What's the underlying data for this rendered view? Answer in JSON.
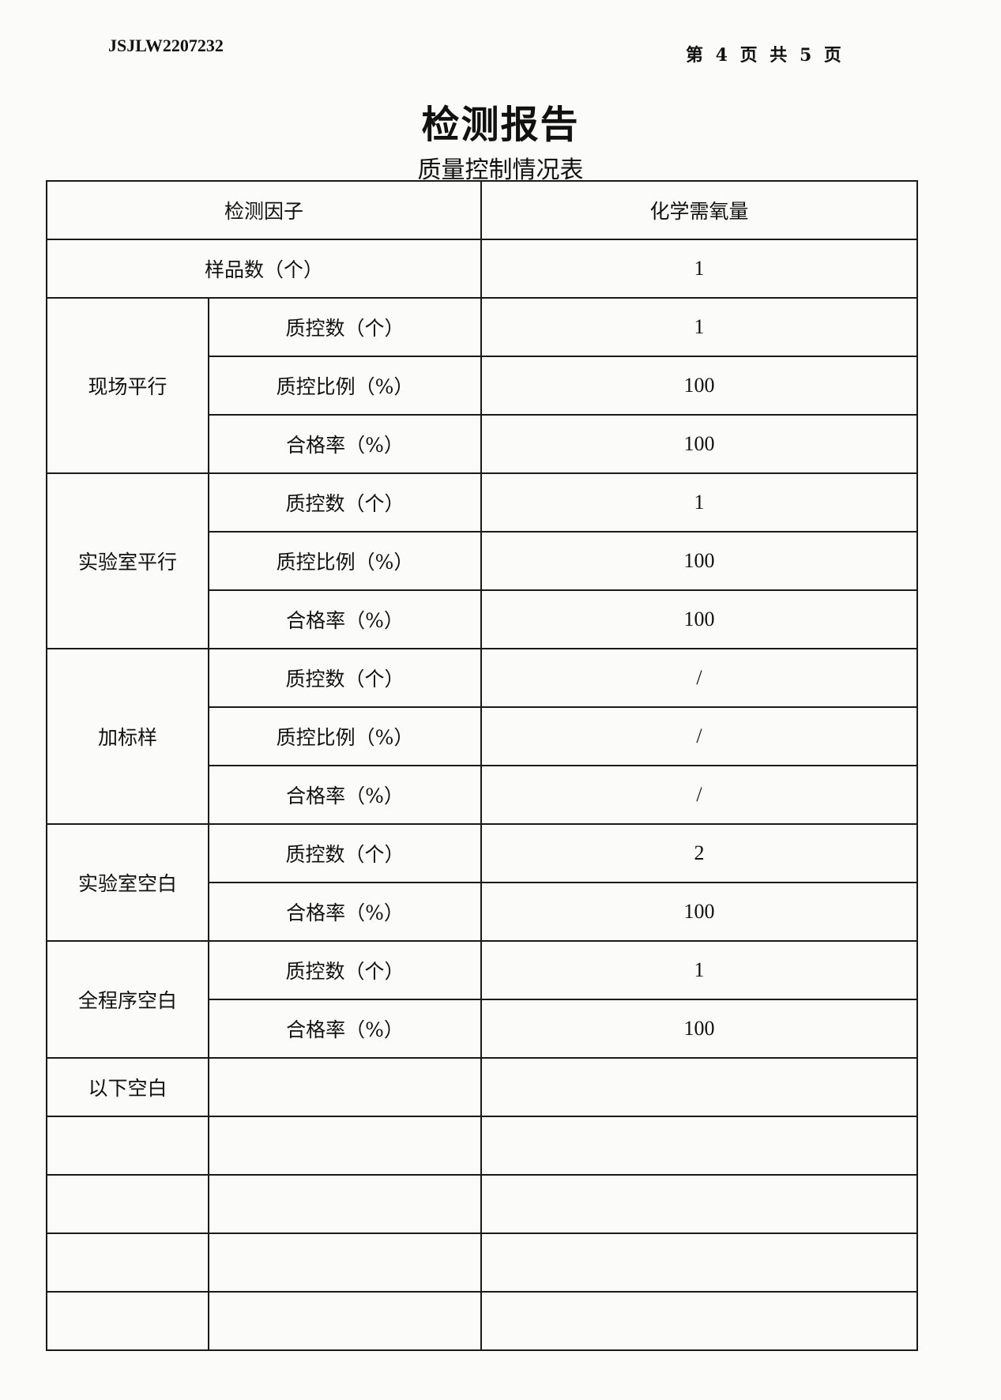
{
  "header": {
    "report_code": "JSJLW2207232",
    "page_info": "第 4 页 共 5 页"
  },
  "title": "检测报告",
  "subtitle": "质量控制情况表",
  "table": {
    "factor_label": "检测因子",
    "factor_value": "化学需氧量",
    "sample_label": "样品数（个）",
    "sample_value": "1",
    "groups": [
      {
        "name": "现场平行",
        "rows": [
          {
            "label": "质控数（个）",
            "value": "1"
          },
          {
            "label": "质控比例（%）",
            "value": "100"
          },
          {
            "label": "合格率（%）",
            "value": "100"
          }
        ]
      },
      {
        "name": "实验室平行",
        "rows": [
          {
            "label": "质控数（个）",
            "value": "1"
          },
          {
            "label": "质控比例（%）",
            "value": "100"
          },
          {
            "label": "合格率（%）",
            "value": "100"
          }
        ]
      },
      {
        "name": "加标样",
        "rows": [
          {
            "label": "质控数（个）",
            "value": "/"
          },
          {
            "label": "质控比例（%）",
            "value": "/"
          },
          {
            "label": "合格率（%）",
            "value": "/"
          }
        ]
      },
      {
        "name": "实验室空白",
        "rows": [
          {
            "label": "质控数（个）",
            "value": "2"
          },
          {
            "label": "合格率（%）",
            "value": "100"
          }
        ]
      },
      {
        "name": "全程序空白",
        "rows": [
          {
            "label": "质控数（个）",
            "value": "1"
          },
          {
            "label": "合格率（%）",
            "value": "100"
          }
        ]
      }
    ],
    "end_note": "以下空白"
  }
}
